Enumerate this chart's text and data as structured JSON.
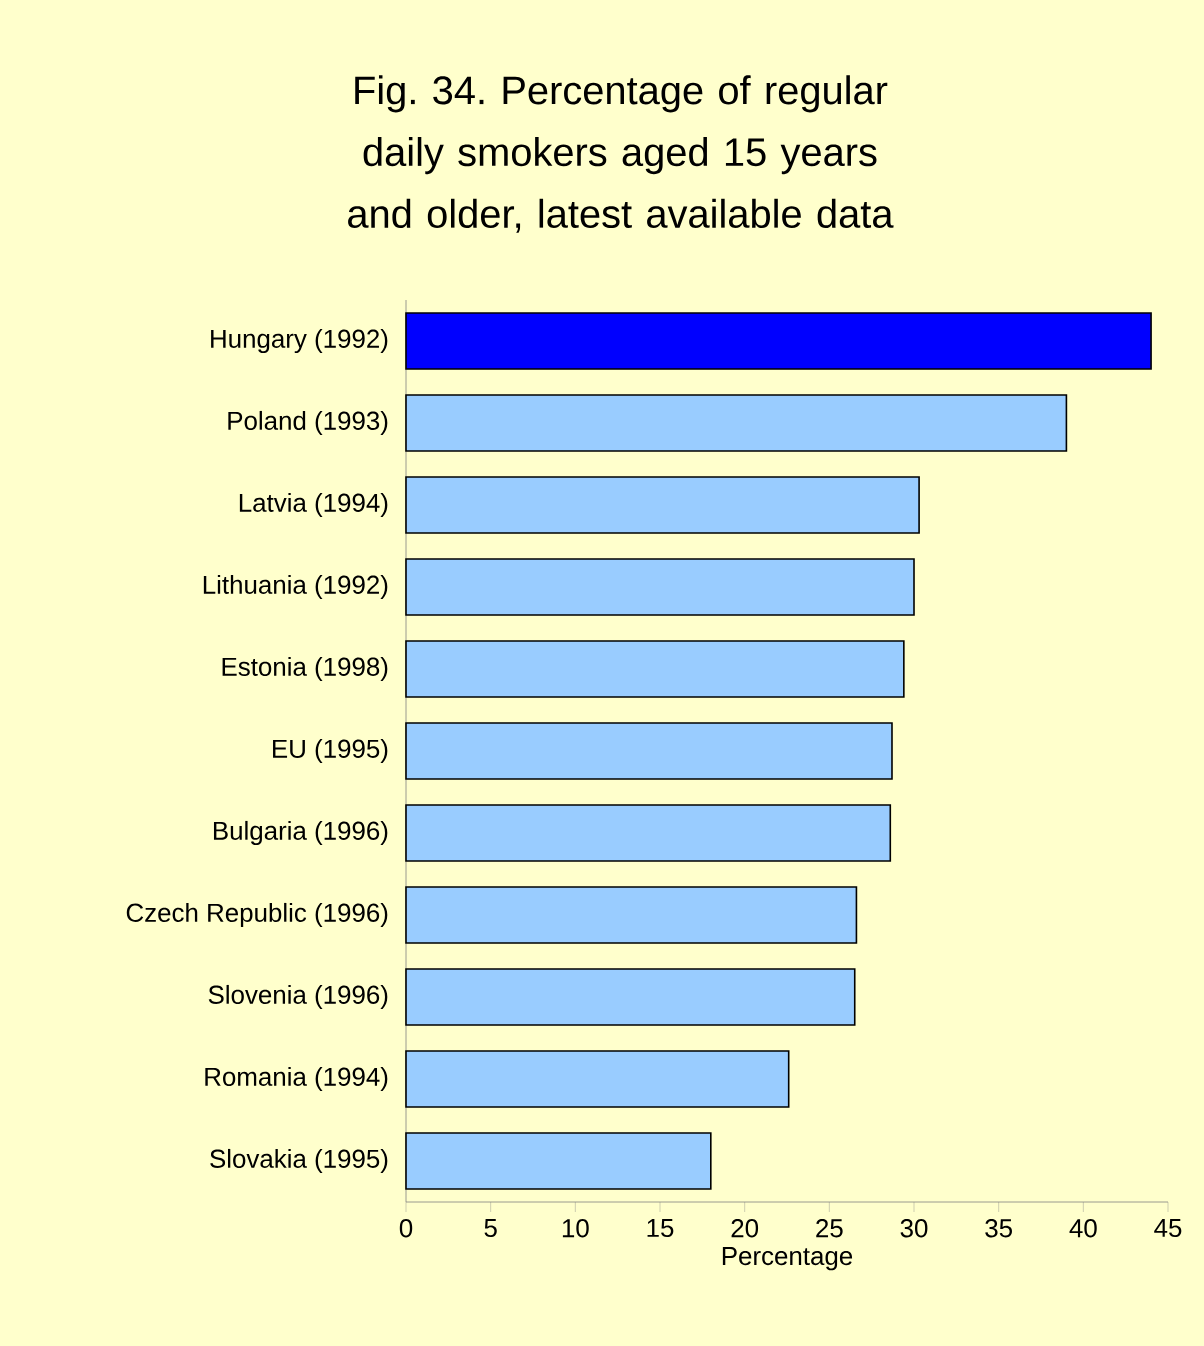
{
  "chart_data": {
    "type": "bar",
    "orientation": "horizontal",
    "title": "Fig. 34. Percentage of regular daily smokers aged 15 years and older, latest available data",
    "xlabel": "Percentage",
    "categories": [
      "Hungary (1992)",
      "Poland (1993)",
      "Latvia (1994)",
      "Lithuania (1992)",
      "Estonia (1998)",
      "EU (1995)",
      "Bulgaria (1996)",
      "Czech Republic (1996)",
      "Slovenia (1996)",
      "Romania (1994)",
      "Slovakia (1995)"
    ],
    "values": [
      44.0,
      39.0,
      30.3,
      30.0,
      29.4,
      28.7,
      28.6,
      26.6,
      26.5,
      22.6,
      18.0
    ],
    "colors": [
      "#0000ff",
      "#99ccff",
      "#99ccff",
      "#99ccff",
      "#99ccff",
      "#99ccff",
      "#99ccff",
      "#99ccff",
      "#99ccff",
      "#99ccff",
      "#99ccff"
    ],
    "xlim": [
      0,
      45
    ],
    "xticks": [
      0,
      5,
      10,
      15,
      20,
      25,
      30,
      35,
      40,
      45
    ],
    "grid": false
  }
}
